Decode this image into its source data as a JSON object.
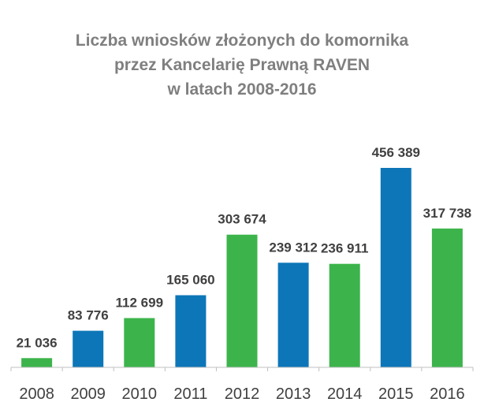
{
  "chart_data": {
    "type": "bar",
    "title_lines": [
      "Liczba wniosków złożonych do komornika",
      "przez Kancelarię Prawną RAVEN",
      "w latach 2008-2016"
    ],
    "categories": [
      "2008",
      "2009",
      "2010",
      "2011",
      "2012",
      "2013",
      "2014",
      "2015",
      "2016"
    ],
    "values": [
      21036,
      83776,
      112699,
      165060,
      303674,
      239312,
      236911,
      456389,
      317738
    ],
    "value_labels": [
      "21 036",
      "83 776",
      "112 699",
      "165 060",
      "303 674",
      "239 312",
      "236 911",
      "456 389",
      "317 738"
    ],
    "bar_colors": [
      "#3cb44b",
      "#0d76b8",
      "#3cb44b",
      "#0d76b8",
      "#3cb44b",
      "#0d76b8",
      "#3cb44b",
      "#0d76b8",
      "#3cb44b"
    ],
    "colors": {
      "green": "#3cb44b",
      "blue": "#0d76b8",
      "title": "#7f7f7f",
      "label": "#404040",
      "axis": "#bfbfbf"
    },
    "ylim": [
      0,
      500000
    ],
    "grid": false,
    "legend": "none",
    "xlabel": "",
    "ylabel": ""
  }
}
